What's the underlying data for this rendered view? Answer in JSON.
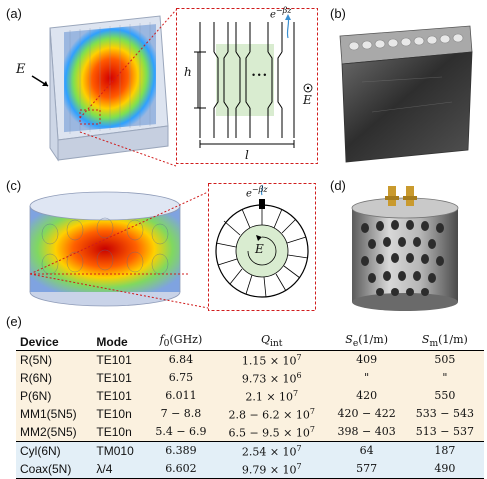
{
  "panels": {
    "a": "(a)",
    "b": "(b)",
    "c": "(c)",
    "d": "(d)",
    "e": "(e)"
  },
  "schematic_a": {
    "field_label": "E",
    "decay_label": "e",
    "decay_exp": "−βz",
    "height_label": "h",
    "length_label": "l",
    "dots": "• • •"
  },
  "schematic_c": {
    "decay_label": "e",
    "decay_exp": "−βz",
    "field_label": "E"
  },
  "table": {
    "headers": {
      "device": "Device",
      "mode": "Mode",
      "f0": "f",
      "f0_sub": "0",
      "f0_unit": "(GHz)",
      "qint": "Q",
      "qint_sub": "int",
      "se": "S",
      "se_sub": "e",
      "se_unit": "(1/m)",
      "sm": "S",
      "sm_sub": "m",
      "sm_unit": "(1/m)"
    },
    "rows": [
      {
        "device": "R(5N)",
        "mode": "TE101",
        "f0": "6.84",
        "q_base": "1.15 × 10",
        "q_exp": "7",
        "se": "409",
        "sm": "505"
      },
      {
        "device": "R(6N)",
        "mode": "TE101",
        "f0": "6.75",
        "q_base": "9.73 × 10",
        "q_exp": "6",
        "se": "\"",
        "sm": "\""
      },
      {
        "device": "P(6N)",
        "mode": "TE101",
        "f0": "6.011",
        "q_base": "2.1 × 10",
        "q_exp": "7",
        "se": "420",
        "sm": "550"
      },
      {
        "device": "MM1(5N5)",
        "mode": "TE10n",
        "f0": "7 − 8.8",
        "q_base": "2.8 − 6.2 × 10",
        "q_exp": "7",
        "se": "420 − 422",
        "sm": "533 − 543"
      },
      {
        "device": "MM2(5N5)",
        "mode": "TE10n",
        "f0": "5.4 − 6.9",
        "q_base": "6.5 − 9.5 × 10",
        "q_exp": "7",
        "se": "398 − 403",
        "sm": "513 − 537"
      },
      {
        "device": "Cyl(6N)",
        "mode": "TM010",
        "f0": "6.389",
        "q_base": "2.54 × 10",
        "q_exp": "7",
        "se": "64",
        "sm": "187"
      },
      {
        "device": "Coax(5N)",
        "mode": "λ/4",
        "f0": "6.602",
        "q_base": "9.79 × 10",
        "q_exp": "7",
        "se": "577",
        "sm": "490"
      }
    ]
  }
}
